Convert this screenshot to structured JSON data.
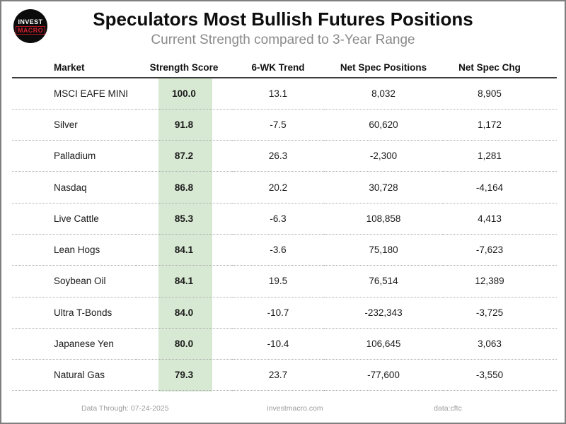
{
  "header": {
    "logo_line1": "INVEST",
    "logo_line2": "MACRO",
    "title": "Speculators Most Bullish Futures Positions",
    "subtitle": "Current Strength compared to 3-Year Range"
  },
  "table": {
    "columns": [
      "Market",
      "Strength Score",
      "6-WK Trend",
      "Net Spec Positions",
      "Net Spec Chg"
    ],
    "rows": [
      {
        "market": "MSCI EAFE MINI",
        "strength_score": "100.0",
        "trend_6wk": "13.1",
        "net_spec_positions": "8,032",
        "net_spec_chg": "8,905"
      },
      {
        "market": "Silver",
        "strength_score": "91.8",
        "trend_6wk": "-7.5",
        "net_spec_positions": "60,620",
        "net_spec_chg": "1,172"
      },
      {
        "market": "Palladium",
        "strength_score": "87.2",
        "trend_6wk": "26.3",
        "net_spec_positions": "-2,300",
        "net_spec_chg": "1,281"
      },
      {
        "market": "Nasdaq",
        "strength_score": "86.8",
        "trend_6wk": "20.2",
        "net_spec_positions": "30,728",
        "net_spec_chg": "-4,164"
      },
      {
        "market": "Live Cattle",
        "strength_score": "85.3",
        "trend_6wk": "-6.3",
        "net_spec_positions": "108,858",
        "net_spec_chg": "4,413"
      },
      {
        "market": "Lean Hogs",
        "strength_score": "84.1",
        "trend_6wk": "-3.6",
        "net_spec_positions": "75,180",
        "net_spec_chg": "-7,623"
      },
      {
        "market": "Soybean Oil",
        "strength_score": "84.1",
        "trend_6wk": "19.5",
        "net_spec_positions": "76,514",
        "net_spec_chg": "12,389"
      },
      {
        "market": "Ultra T-Bonds",
        "strength_score": "84.0",
        "trend_6wk": "-10.7",
        "net_spec_positions": "-232,343",
        "net_spec_chg": "-3,725"
      },
      {
        "market": "Japanese Yen",
        "strength_score": "80.0",
        "trend_6wk": "-10.4",
        "net_spec_positions": "106,645",
        "net_spec_chg": "3,063"
      },
      {
        "market": "Natural Gas",
        "strength_score": "79.3",
        "trend_6wk": "23.7",
        "net_spec_positions": "-77,600",
        "net_spec_chg": "-3,550"
      }
    ]
  },
  "footer": {
    "data_through": "Data Through: 07-24-2025",
    "website": "investmacro.com",
    "source": "data:cftc"
  },
  "colors": {
    "strength_band_green": "#d8e9d3",
    "logo_red": "#d01f2f",
    "subtitle_gray": "#8a8a8a",
    "footer_gray": "#9b9b9b",
    "page_border_gray": "#7f7f7f"
  },
  "chart_data": {
    "type": "table",
    "title": "Speculators Most Bullish Futures Positions",
    "subtitle": "Current Strength compared to 3-Year Range",
    "columns": [
      "Market",
      "Strength Score",
      "6-WK Trend",
      "Net Spec Positions",
      "Net Spec Chg"
    ],
    "rows": [
      [
        "MSCI EAFE MINI",
        100.0,
        13.1,
        8032,
        8905
      ],
      [
        "Silver",
        91.8,
        -7.5,
        60620,
        1172
      ],
      [
        "Palladium",
        87.2,
        26.3,
        -2300,
        1281
      ],
      [
        "Nasdaq",
        86.8,
        20.2,
        30728,
        -4164
      ],
      [
        "Live Cattle",
        85.3,
        -6.3,
        108858,
        4413
      ],
      [
        "Lean Hogs",
        84.1,
        -3.6,
        75180,
        -7623
      ],
      [
        "Soybean Oil",
        84.1,
        19.5,
        76514,
        12389
      ],
      [
        "Ultra T-Bonds",
        84.0,
        -10.7,
        -232343,
        -3725
      ],
      [
        "Japanese Yen",
        80.0,
        -10.4,
        106645,
        3063
      ],
      [
        "Natural Gas",
        79.3,
        23.7,
        -77600,
        -3550
      ]
    ],
    "highlight": {
      "column": "Strength Score",
      "color": "#d8e9d3"
    },
    "notes": [
      "Data Through: 07-24-2025",
      "investmacro.com",
      "data:cftc"
    ]
  }
}
